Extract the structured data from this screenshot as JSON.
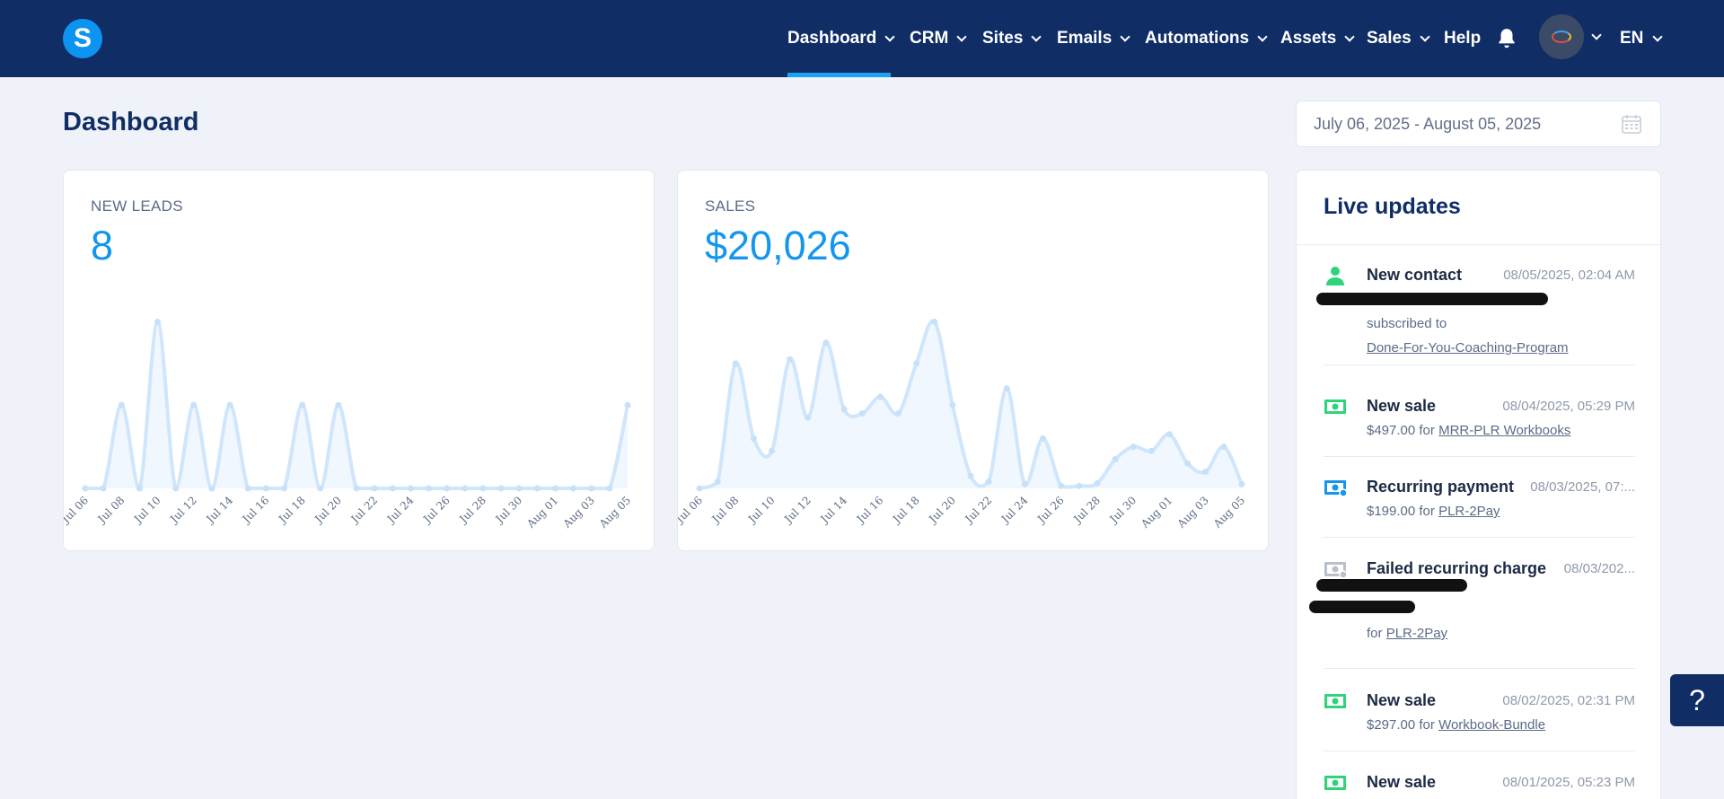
{
  "nav": {
    "logo_letter": "S",
    "items": [
      {
        "label": "Dashboard",
        "dropdown": true,
        "active": true
      },
      {
        "label": "CRM",
        "dropdown": true
      },
      {
        "label": "Sites",
        "dropdown": true
      },
      {
        "label": "Emails",
        "dropdown": true
      },
      {
        "label": "Automations",
        "dropdown": true
      },
      {
        "label": "Assets",
        "dropdown": true
      },
      {
        "label": "Sales",
        "dropdown": true
      },
      {
        "label": "Help",
        "dropdown": false
      }
    ],
    "language": "EN",
    "accent_color": "#18a3f5",
    "background_color": "#102d66"
  },
  "page": {
    "title": "Dashboard",
    "date_range": "July 06, 2025 - August 05, 2025"
  },
  "leads_card": {
    "label": "NEW LEADS",
    "value": "8"
  },
  "sales_card": {
    "label": "SALES",
    "value": "$20,026"
  },
  "chart_data": [
    {
      "type": "area",
      "title": "NEW LEADS",
      "x": [
        "Jul 06",
        "Jul 07",
        "Jul 08",
        "Jul 09",
        "Jul 10",
        "Jul 11",
        "Jul 12",
        "Jul 13",
        "Jul 14",
        "Jul 15",
        "Jul 16",
        "Jul 17",
        "Jul 18",
        "Jul 19",
        "Jul 20",
        "Jul 21",
        "Jul 22",
        "Jul 23",
        "Jul 24",
        "Jul 25",
        "Jul 26",
        "Jul 27",
        "Jul 28",
        "Jul 29",
        "Jul 30",
        "Jul 31",
        "Aug 01",
        "Aug 02",
        "Aug 03",
        "Aug 04",
        "Aug 05"
      ],
      "tick_labels": [
        "Jul 06",
        "Jul 08",
        "Jul 10",
        "Jul 12",
        "Jul 14",
        "Jul 16",
        "Jul 18",
        "Jul 20",
        "Jul 22",
        "Jul 24",
        "Jul 26",
        "Jul 28",
        "Jul 30",
        "Aug 01",
        "Aug 03",
        "Aug 05"
      ],
      "values": [
        0,
        0,
        1,
        0,
        2,
        0,
        1,
        0,
        1,
        0,
        0,
        0,
        1,
        0,
        1,
        0,
        0,
        0,
        0,
        0,
        0,
        0,
        0,
        0,
        0,
        0,
        0,
        0,
        0,
        0,
        1
      ],
      "ylim": [
        0,
        2.2
      ],
      "grid": false,
      "color": "#cfe6fb"
    },
    {
      "type": "area",
      "title": "SALES",
      "x": [
        "Jul 06",
        "Jul 07",
        "Jul 08",
        "Jul 09",
        "Jul 10",
        "Jul 11",
        "Jul 12",
        "Jul 13",
        "Jul 14",
        "Jul 15",
        "Jul 16",
        "Jul 17",
        "Jul 18",
        "Jul 19",
        "Jul 20",
        "Jul 21",
        "Jul 22",
        "Jul 23",
        "Jul 24",
        "Jul 25",
        "Jul 26",
        "Jul 27",
        "Jul 28",
        "Jul 29",
        "Jul 30",
        "Jul 31",
        "Aug 01",
        "Aug 02",
        "Aug 03",
        "Aug 04",
        "Aug 05"
      ],
      "tick_labels": [
        "Jul 06",
        "Jul 08",
        "Jul 10",
        "Jul 12",
        "Jul 14",
        "Jul 16",
        "Jul 18",
        "Jul 20",
        "Jul 22",
        "Jul 24",
        "Jul 26",
        "Jul 28",
        "Jul 30",
        "Aug 01",
        "Aug 03",
        "Aug 05"
      ],
      "values": [
        0,
        80,
        1500,
        600,
        450,
        1550,
        850,
        1750,
        950,
        900,
        1100,
        900,
        1500,
        2000,
        1000,
        150,
        80,
        1200,
        50,
        600,
        30,
        30,
        60,
        350,
        500,
        450,
        650,
        300,
        200,
        500,
        50
      ],
      "ylim": [
        0,
        2200
      ],
      "grid": false,
      "color": "#cfe6fb"
    }
  ],
  "live_updates": {
    "title": "Live updates",
    "items": [
      {
        "icon": "person-icon",
        "title": "New contact",
        "time": "08/05/2025, 02:04 AM",
        "line1": "subscribed to",
        "link": "Done-For-You-Coaching-Program"
      },
      {
        "icon": "money-icon",
        "title": "New sale",
        "time": "08/04/2025, 05:29 PM",
        "prefix": "$497.00 for",
        "link": "MRR-PLR Workbooks"
      },
      {
        "icon": "recurring-money-icon",
        "title": "Recurring payment",
        "time": "08/03/2025, 07:...",
        "prefix": "$199.00 for",
        "link": "PLR-2Pay"
      },
      {
        "icon": "failed-money-icon",
        "title": "Failed recurring charge",
        "time": "08/03/202...",
        "prefix": "for",
        "link": "PLR-2Pay"
      },
      {
        "icon": "money-icon",
        "title": "New sale",
        "time": "08/02/2025, 02:31 PM",
        "prefix": "$297.00 for",
        "link": "Workbook-Bundle"
      },
      {
        "icon": "money-icon",
        "title": "New sale",
        "time": "08/01/2025, 05:23 PM"
      }
    ],
    "colors": {
      "success": "#2ed47a",
      "failed": "#b9c0cc"
    }
  },
  "help_button": {
    "label": "?"
  }
}
